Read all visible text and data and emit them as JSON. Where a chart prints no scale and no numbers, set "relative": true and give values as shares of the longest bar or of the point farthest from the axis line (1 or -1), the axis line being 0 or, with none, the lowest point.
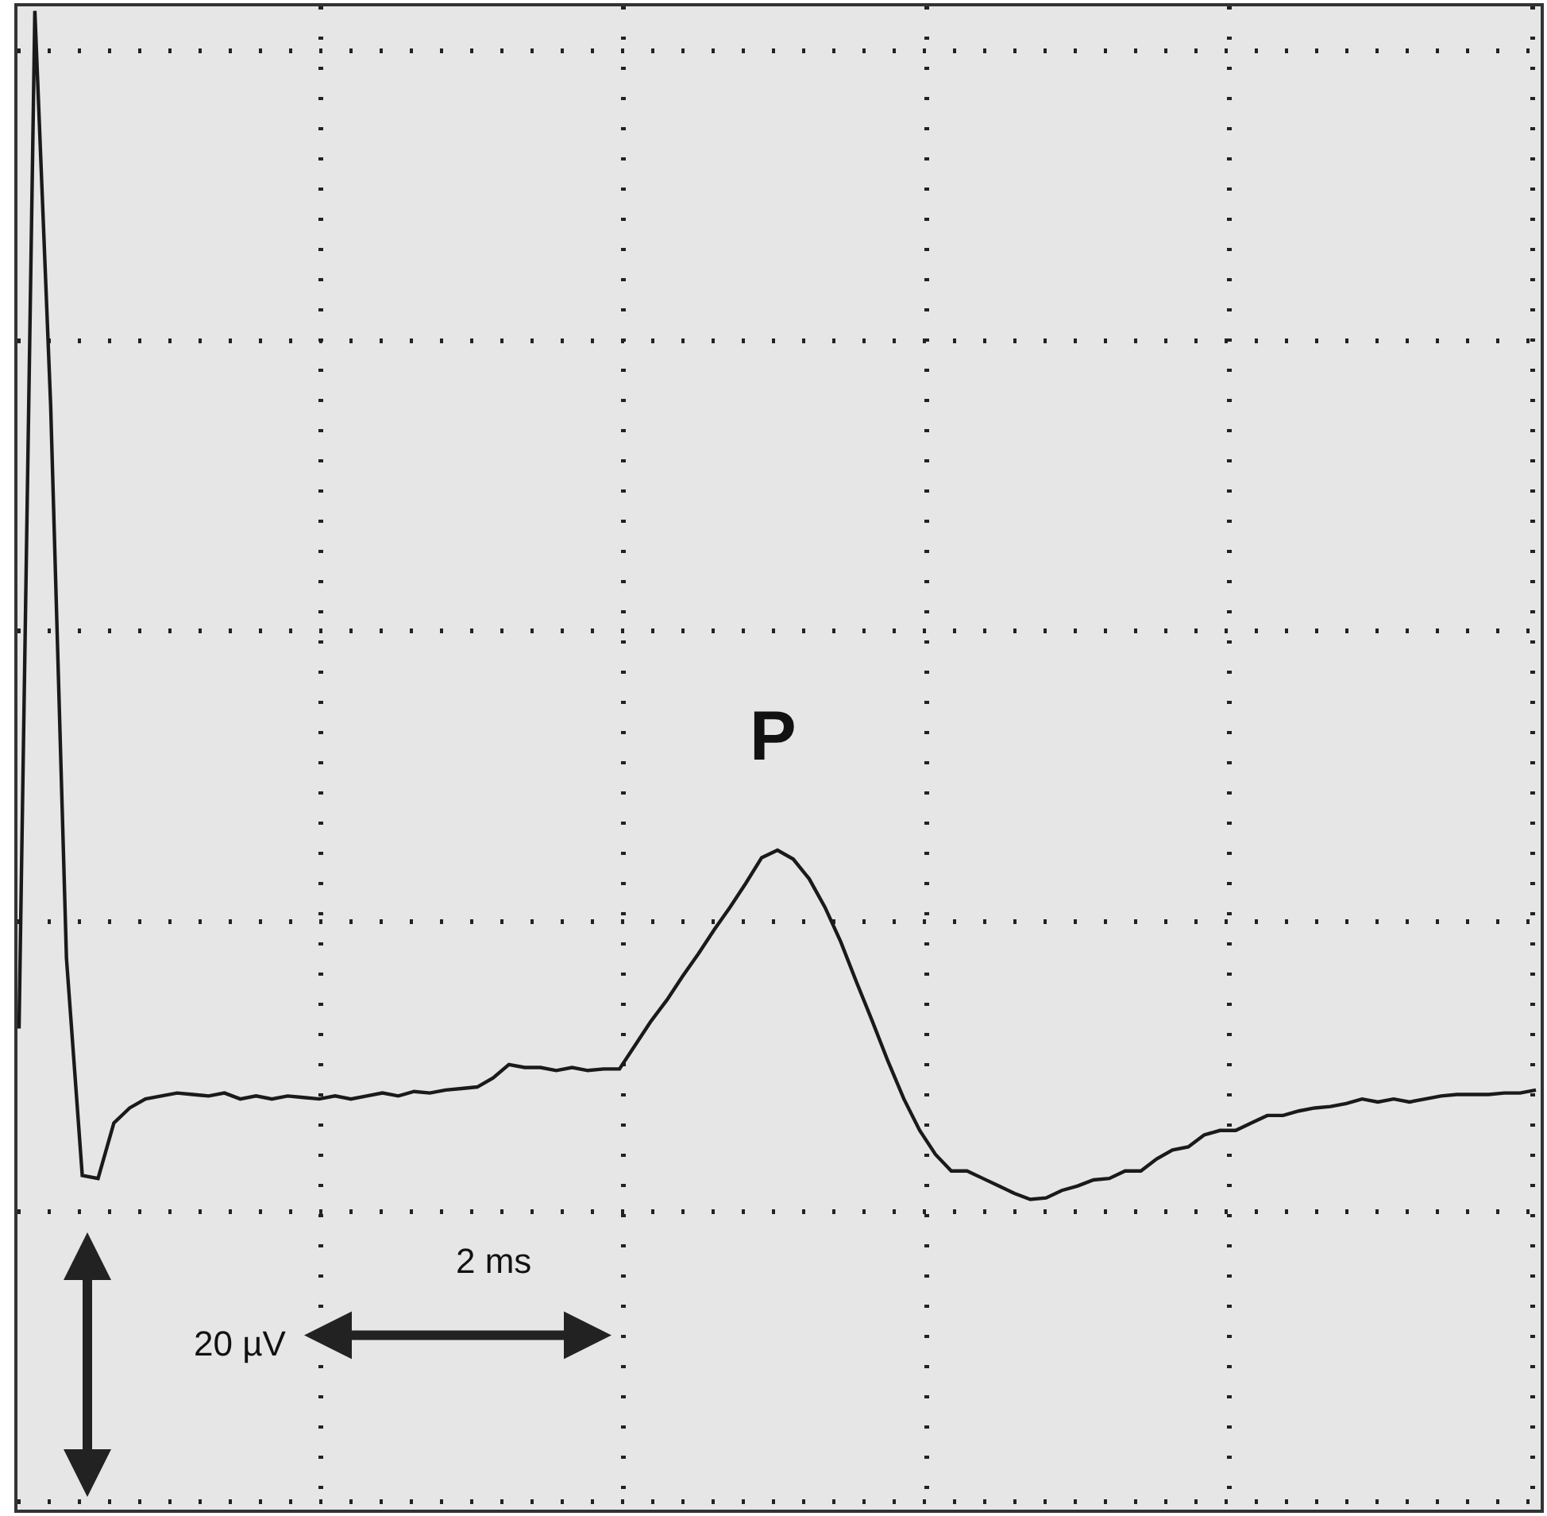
{
  "chart_data": {
    "type": "line",
    "relative": true,
    "grid": true,
    "marker": "none",
    "line_style": "solid",
    "categories": [
      null,
      null,
      null,
      null,
      null,
      null,
      null,
      null,
      null,
      null,
      null,
      null,
      null,
      null,
      null,
      null,
      null,
      null,
      null,
      null,
      null,
      null,
      null,
      null,
      null,
      null,
      null,
      null,
      null,
      null,
      null,
      null,
      null,
      null,
      null,
      null,
      null,
      null,
      null,
      null,
      null,
      null,
      null,
      null,
      null,
      null,
      null,
      null,
      null,
      null,
      null,
      null,
      null,
      null,
      null,
      null,
      null,
      null,
      null,
      null,
      null,
      null,
      null,
      null,
      null,
      null,
      null,
      null,
      null,
      null,
      null,
      null,
      null,
      null,
      null,
      null,
      null,
      null,
      null,
      null,
      null,
      null,
      null,
      null,
      null,
      null,
      null,
      null,
      null,
      null,
      null,
      null,
      null,
      null,
      null,
      null,
      null
    ],
    "series": [
      {
        "color": "#1a1a1a",
        "values": [
          0.321,
          1,
          0.737,
          0.368,
          0.223,
          0.221,
          0.258,
          0.268,
          0.274,
          0.276,
          0.278,
          0.277,
          0.276,
          0.278,
          0.274,
          0.276,
          0.274,
          0.276,
          0.275,
          0.274,
          0.276,
          0.274,
          0.276,
          0.278,
          0.276,
          0.279,
          0.278,
          0.28,
          0.281,
          0.282,
          0.288,
          0.297,
          0.295,
          0.295,
          0.293,
          0.295,
          0.293,
          0.294,
          0.294,
          0.31,
          0.326,
          0.34,
          0.356,
          0.371,
          0.387,
          0.402,
          0.418,
          0.435,
          0.44,
          0.434,
          0.421,
          0.402,
          0.379,
          0.352,
          0.326,
          0.299,
          0.274,
          0.253,
          0.237,
          0.226,
          0.226,
          0.221,
          0.216,
          0.211,
          0.207,
          0.208,
          0.213,
          0.216,
          0.22,
          0.221,
          0.226,
          0.226,
          0.234,
          0.24,
          0.242,
          0.25,
          0.253,
          0.253,
          0.258,
          0.263,
          0.263,
          0.266,
          0.268,
          0.269,
          0.271,
          0.274,
          0.272,
          0.274,
          0.272,
          0.274,
          0.276,
          0.277,
          0.277,
          0.277,
          0.278,
          0.278,
          0.28
        ]
      }
    ],
    "annotations": [
      "P",
      "2 ms",
      "20 µV"
    ]
  }
}
